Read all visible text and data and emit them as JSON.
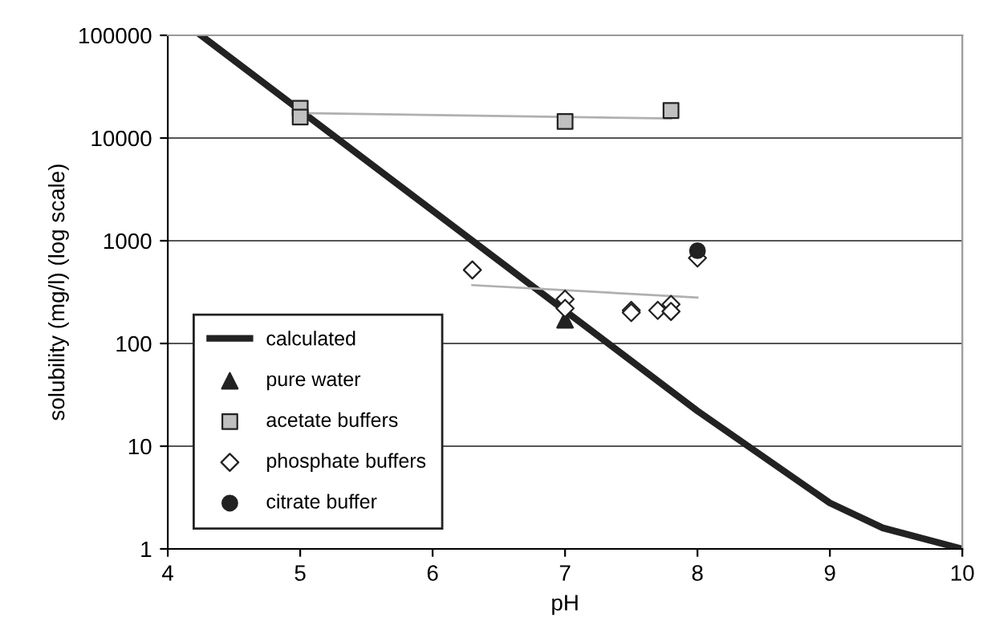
{
  "chart_data": {
    "type": "scatter",
    "xlabel": "pH",
    "ylabel": "solubility (mg/l) (log scale)",
    "log": "y",
    "xlim": [
      4,
      10
    ],
    "xticks": [
      4,
      5,
      6,
      7,
      8,
      9,
      10
    ],
    "ylim": [
      1,
      100000
    ],
    "yticks": [
      1,
      10,
      100,
      1000,
      10000,
      100000
    ],
    "grid": "y",
    "legend": "bottom left",
    "series": [
      {
        "name": "calculated",
        "type": "line",
        "color": "#222222",
        "marker": "none",
        "x": [
          4.25,
          8,
          9,
          9.4,
          10
        ],
        "values": [
          100000,
          22,
          2.8,
          1.6,
          1
        ]
      },
      {
        "name": "pure water",
        "color": "#222222",
        "marker": "triangle",
        "x": [
          7
        ],
        "values": [
          170
        ]
      },
      {
        "name": "acetate buffers",
        "color": "#c0c0c0",
        "marker": "square",
        "x": [
          5,
          5,
          7,
          7.8
        ],
        "values": [
          19500,
          16000,
          14500,
          18500
        ]
      },
      {
        "name": "phosphate buffers",
        "color": "#ffffff",
        "marker": "diamond",
        "x": [
          6.3,
          7,
          7,
          7.5,
          7.5,
          7.7,
          7.8,
          7.8,
          8
        ],
        "values": [
          520,
          270,
          220,
          210,
          200,
          210,
          240,
          205,
          680
        ]
      },
      {
        "name": "citrate buffer",
        "color": "#222222",
        "marker": "circle",
        "x": [
          8
        ],
        "values": [
          800
        ]
      },
      {
        "type": "line",
        "color": "#b0b0b0",
        "marker": "none",
        "x": [
          5,
          7.8
        ],
        "values": [
          17500,
          15500
        ]
      },
      {
        "type": "line",
        "color": "#b0b0b0",
        "marker": "none",
        "x": [
          6.3,
          8
        ],
        "values": [
          370,
          280
        ]
      }
    ]
  }
}
